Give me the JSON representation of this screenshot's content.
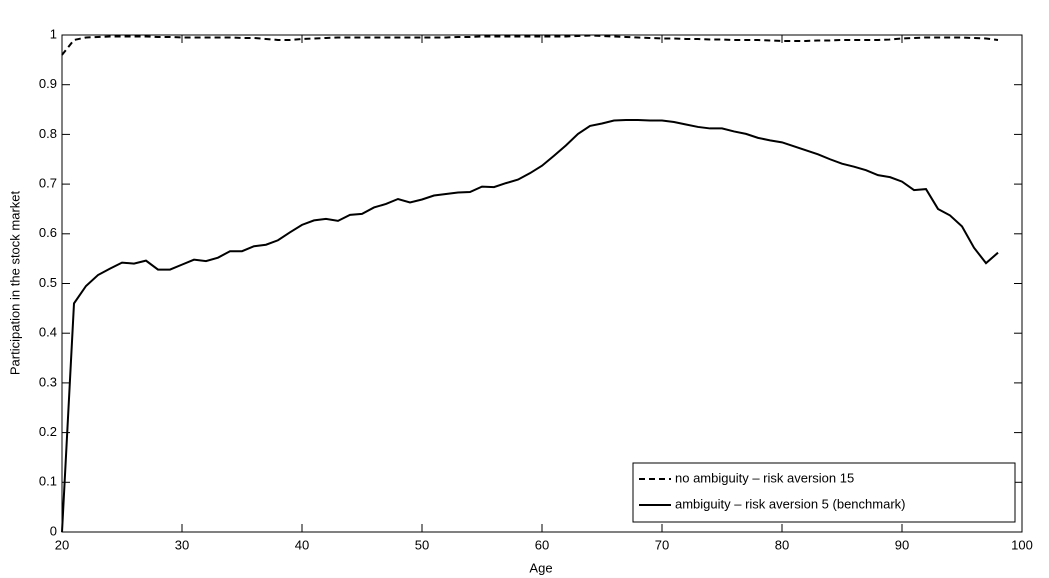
{
  "chart_data": {
    "type": "line",
    "xlabel": "Age",
    "ylabel": "Participation in the stock market",
    "x": [
      20,
      21,
      22,
      23,
      24,
      25,
      26,
      27,
      28,
      29,
      30,
      31,
      32,
      33,
      34,
      35,
      36,
      37,
      38,
      39,
      40,
      41,
      42,
      43,
      44,
      45,
      46,
      47,
      48,
      49,
      50,
      51,
      52,
      53,
      54,
      55,
      56,
      57,
      58,
      59,
      60,
      61,
      62,
      63,
      64,
      65,
      66,
      67,
      68,
      69,
      70,
      71,
      72,
      73,
      74,
      75,
      76,
      77,
      78,
      79,
      80,
      81,
      82,
      83,
      84,
      85,
      86,
      87,
      88,
      89,
      90,
      91,
      92,
      93,
      94,
      95,
      96,
      97,
      98
    ],
    "series": [
      {
        "name": "no ambiguity – risk aversion 15",
        "color": "#000000",
        "linestyle": "dashed",
        "values": [
          0.96,
          0.99,
          0.995,
          0.996,
          0.997,
          0.997,
          0.997,
          0.997,
          0.996,
          0.996,
          0.995,
          0.995,
          0.995,
          0.995,
          0.995,
          0.994,
          0.994,
          0.992,
          0.99,
          0.99,
          0.992,
          0.993,
          0.994,
          0.995,
          0.995,
          0.995,
          0.995,
          0.995,
          0.995,
          0.995,
          0.995,
          0.995,
          0.995,
          0.996,
          0.996,
          0.997,
          0.997,
          0.997,
          0.997,
          0.997,
          0.997,
          0.997,
          0.997,
          0.998,
          0.999,
          0.998,
          0.997,
          0.996,
          0.995,
          0.994,
          0.993,
          0.993,
          0.992,
          0.992,
          0.991,
          0.991,
          0.99,
          0.99,
          0.99,
          0.989,
          0.988,
          0.988,
          0.988,
          0.989,
          0.989,
          0.99,
          0.99,
          0.99,
          0.99,
          0.991,
          0.993,
          0.994,
          0.995,
          0.995,
          0.995,
          0.995,
          0.994,
          0.993,
          0.99
        ]
      },
      {
        "name": "ambiguity – risk aversion 5 (benchmark)",
        "color": "#000000",
        "linestyle": "solid",
        "values": [
          0,
          0.46,
          0.495,
          0.517,
          0.53,
          0.542,
          0.54,
          0.546,
          0.528,
          0.528,
          0.538,
          0.548,
          0.545,
          0.552,
          0.565,
          0.565,
          0.575,
          0.578,
          0.587,
          0.603,
          0.618,
          0.627,
          0.63,
          0.626,
          0.638,
          0.64,
          0.653,
          0.66,
          0.67,
          0.663,
          0.669,
          0.677,
          0.68,
          0.683,
          0.684,
          0.695,
          0.694,
          0.702,
          0.709,
          0.722,
          0.737,
          0.757,
          0.778,
          0.801,
          0.817,
          0.822,
          0.828,
          0.829,
          0.829,
          0.828,
          0.828,
          0.825,
          0.82,
          0.815,
          0.812,
          0.812,
          0.806,
          0.801,
          0.793,
          0.788,
          0.784,
          0.776,
          0.768,
          0.76,
          0.75,
          0.741,
          0.735,
          0.728,
          0.718,
          0.714,
          0.705,
          0.688,
          0.69,
          0.65,
          0.637,
          0.615,
          0.572,
          0.541,
          0.562
        ]
      }
    ],
    "xlim": [
      20,
      100
    ],
    "xticks": [
      20,
      30,
      40,
      50,
      60,
      70,
      80,
      90,
      100
    ],
    "ylim": [
      0,
      1
    ],
    "yticks": [
      0,
      0.1,
      0.2,
      0.3,
      0.4,
      0.5,
      0.6,
      0.7,
      0.8,
      0.9,
      1
    ],
    "grid": false,
    "legend": "lower right"
  }
}
